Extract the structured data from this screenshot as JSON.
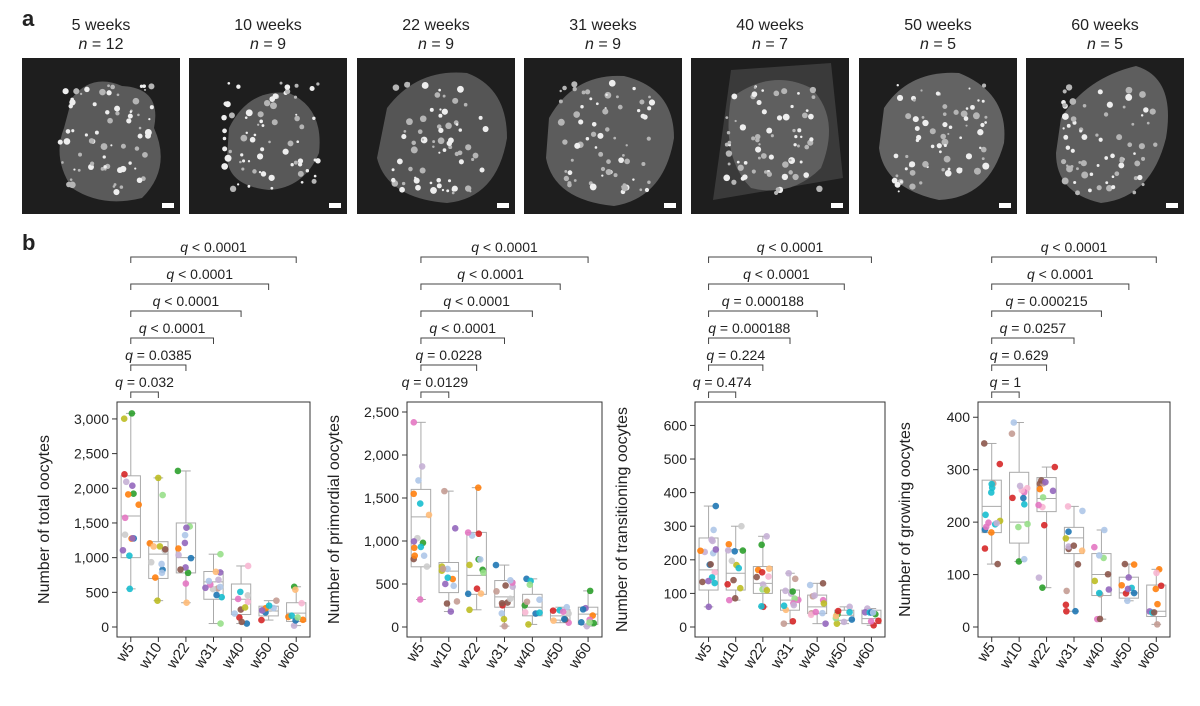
{
  "panel_a": {
    "label": "a",
    "images": [
      {
        "weeks": "5 weeks",
        "n": "12"
      },
      {
        "weeks": "10 weeks",
        "n": "9"
      },
      {
        "weeks": "22 weeks",
        "n": "9"
      },
      {
        "weeks": "31 weeks",
        "n": "9"
      },
      {
        "weeks": "40 weeks",
        "n": "7"
      },
      {
        "weeks": "50 weeks",
        "n": "5"
      },
      {
        "weeks": "60 weeks",
        "n": "5"
      }
    ]
  },
  "panel_b": {
    "label": "b"
  },
  "chart_data": [
    {
      "type": "box",
      "ylabel": "Number of total oocytes",
      "categories": [
        "w5",
        "w10",
        "w22",
        "w31",
        "w40",
        "w50",
        "w60"
      ],
      "ylim": [
        0,
        3100
      ],
      "yticks": [
        0,
        500,
        1000,
        1500,
        2000,
        2500,
        3000
      ],
      "ytick_labels": [
        "0",
        "500",
        "1,000",
        "1,500",
        "2,000",
        "2,500",
        "3,000"
      ],
      "boxes": [
        {
          "q1": 1000,
          "median": 1600,
          "q3": 2180,
          "lo": 550,
          "hi": 3080
        },
        {
          "q1": 700,
          "median": 1050,
          "q3": 1230,
          "lo": 380,
          "hi": 2150
        },
        {
          "q1": 780,
          "median": 1000,
          "q3": 1500,
          "lo": 350,
          "hi": 2250
        },
        {
          "q1": 400,
          "median": 650,
          "q3": 800,
          "lo": 50,
          "hi": 1050
        },
        {
          "q1": 180,
          "median": 400,
          "q3": 620,
          "lo": 50,
          "hi": 880
        },
        {
          "q1": 160,
          "median": 230,
          "q3": 300,
          "lo": 100,
          "hi": 380
        },
        {
          "q1": 80,
          "median": 200,
          "q3": 350,
          "lo": 20,
          "hi": 580
        }
      ],
      "comparisons": [
        "q = 0.032",
        "q = 0.0385",
        "q < 0.0001",
        "q < 0.0001",
        "q < 0.0001",
        "q < 0.0001"
      ]
    },
    {
      "type": "box",
      "ylabel": "Number of primordial oocytes",
      "categories": [
        "w5",
        "w10",
        "w22",
        "w31",
        "w40",
        "w50",
        "w60"
      ],
      "ylim": [
        0,
        2500
      ],
      "yticks": [
        0,
        500,
        1000,
        1500,
        2000,
        2500
      ],
      "ytick_labels": [
        "0",
        "500",
        "1,000",
        "1,500",
        "2,000",
        "2,500"
      ],
      "boxes": [
        {
          "q1": 700,
          "median": 1280,
          "q3": 1600,
          "lo": 320,
          "hi": 2380
        },
        {
          "q1": 400,
          "median": 650,
          "q3": 750,
          "lo": 180,
          "hi": 1580
        },
        {
          "q1": 380,
          "median": 600,
          "q3": 1100,
          "lo": 200,
          "hi": 1620
        },
        {
          "q1": 230,
          "median": 350,
          "q3": 540,
          "lo": 10,
          "hi": 720
        },
        {
          "q1": 130,
          "median": 230,
          "q3": 380,
          "lo": 30,
          "hi": 560
        },
        {
          "q1": 80,
          "median": 130,
          "q3": 200,
          "lo": 50,
          "hi": 230
        },
        {
          "q1": 30,
          "median": 150,
          "q3": 230,
          "lo": 10,
          "hi": 420
        }
      ],
      "comparisons": [
        "q = 0.0129",
        "q = 0.0228",
        "q < 0.0001",
        "q < 0.0001",
        "q < 0.0001",
        "q < 0.0001"
      ]
    },
    {
      "type": "box",
      "ylabel": "Number of transitioning oocytes",
      "categories": [
        "w5",
        "w10",
        "w22",
        "w31",
        "w40",
        "w50",
        "w60"
      ],
      "ylim": [
        0,
        640
      ],
      "yticks": [
        0,
        100,
        200,
        300,
        400,
        500,
        600
      ],
      "ytick_labels": [
        "0",
        "100",
        "200",
        "300",
        "400",
        "500",
        "600"
      ],
      "boxes": [
        {
          "q1": 110,
          "median": 170,
          "q3": 265,
          "lo": 60,
          "hi": 360
        },
        {
          "q1": 110,
          "median": 160,
          "q3": 230,
          "lo": 80,
          "hi": 300
        },
        {
          "q1": 100,
          "median": 130,
          "q3": 180,
          "lo": 60,
          "hi": 270
        },
        {
          "q1": 50,
          "median": 80,
          "q3": 110,
          "lo": 10,
          "hi": 160
        },
        {
          "q1": 40,
          "median": 60,
          "q3": 95,
          "lo": 10,
          "hi": 130
        },
        {
          "q1": 20,
          "median": 35,
          "q3": 50,
          "lo": 10,
          "hi": 60
        },
        {
          "q1": 10,
          "median": 25,
          "q3": 50,
          "lo": 5,
          "hi": 55
        }
      ],
      "comparisons": [
        "q = 0.474",
        "q = 0.224",
        "q = 0.000188",
        "q = 0.000188",
        "q < 0.0001",
        "q < 0.0001"
      ]
    },
    {
      "type": "box",
      "ylabel": "Number of growing oocytes",
      "categories": [
        "w5",
        "w10",
        "w22",
        "w31",
        "w40",
        "w50",
        "w60"
      ],
      "ylim": [
        0,
        410
      ],
      "yticks": [
        0,
        100,
        200,
        300,
        400
      ],
      "ytick_labels": [
        "0",
        "100",
        "200",
        "300",
        "400"
      ],
      "boxes": [
        {
          "q1": 180,
          "median": 230,
          "q3": 280,
          "lo": 120,
          "hi": 350
        },
        {
          "q1": 160,
          "median": 200,
          "q3": 295,
          "lo": 125,
          "hi": 390
        },
        {
          "q1": 220,
          "median": 245,
          "q3": 285,
          "lo": 75,
          "hi": 305
        },
        {
          "q1": 140,
          "median": 170,
          "q3": 190,
          "lo": 30,
          "hi": 230
        },
        {
          "q1": 60,
          "median": 100,
          "q3": 140,
          "lo": 15,
          "hi": 185
        },
        {
          "q1": 55,
          "median": 65,
          "q3": 95,
          "lo": 50,
          "hi": 120
        },
        {
          "q1": 20,
          "median": 30,
          "q3": 80,
          "lo": 5,
          "hi": 110
        }
      ],
      "comparisons": [
        "q = 1",
        "q = 0.629",
        "q = 0.0257",
        "q = 0.000215",
        "q < 0.0001",
        "q < 0.0001"
      ]
    }
  ],
  "colors": {
    "dots": [
      "#e377c2",
      "#2ca02c",
      "#1f77b4",
      "#d62728",
      "#8c564b",
      "#ff7f0e",
      "#9467bd",
      "#bcbd22",
      "#17becf",
      "#f7b6d2",
      "#98df8a",
      "#aec7e8",
      "#c49c94",
      "#ffbb78",
      "#c5b0d5",
      "#cccccc"
    ],
    "box": "#aaaaaa",
    "image_background": "#1e1e1e"
  }
}
